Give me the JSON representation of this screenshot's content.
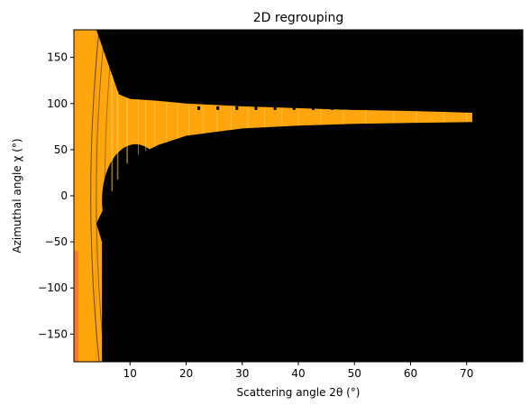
{
  "chart_data": {
    "type": "heatmap",
    "title": "2D regrouping",
    "xlabel": "Scattering angle 2θ (°)",
    "ylabel": "Azimuthal angle χ (°)",
    "xlim": [
      0,
      80
    ],
    "ylim": [
      -180,
      180
    ],
    "xticks": [
      10,
      20,
      30,
      40,
      50,
      60,
      70
    ],
    "yticks": [
      -150,
      -100,
      -50,
      0,
      50,
      100,
      150
    ],
    "colors": {
      "background": "#000000",
      "intensity": "#ffa50d",
      "intensity_low": "#f08a1c",
      "intensity_edge": "#f07d2a",
      "ring": "#ffd45a"
    },
    "coverage": {
      "description_units": "degrees",
      "inner_strip_x": [
        0,
        4
      ],
      "upper_band": [
        {
          "x": 4,
          "y_low": -30,
          "y_high": 180
        },
        {
          "x": 8,
          "y_low": 20,
          "y_high": 110
        },
        {
          "x": 10,
          "y_low": 40,
          "y_high": 105
        },
        {
          "x": 15,
          "y_low": 55,
          "y_high": 103
        },
        {
          "x": 20,
          "y_low": 65,
          "y_high": 100
        },
        {
          "x": 30,
          "y_low": 73,
          "y_high": 97
        },
        {
          "x": 40,
          "y_low": 76,
          "y_high": 95
        },
        {
          "x": 50,
          "y_low": 78,
          "y_high": 93
        },
        {
          "x": 60,
          "y_low": 79,
          "y_high": 92
        },
        {
          "x": 71,
          "y_low": 80,
          "y_high": 90
        }
      ],
      "lower_band": [
        {
          "x": 4,
          "y_low": -180,
          "y_high": -30
        },
        {
          "x": 5,
          "y_low": -180,
          "y_high": -50
        }
      ]
    }
  }
}
